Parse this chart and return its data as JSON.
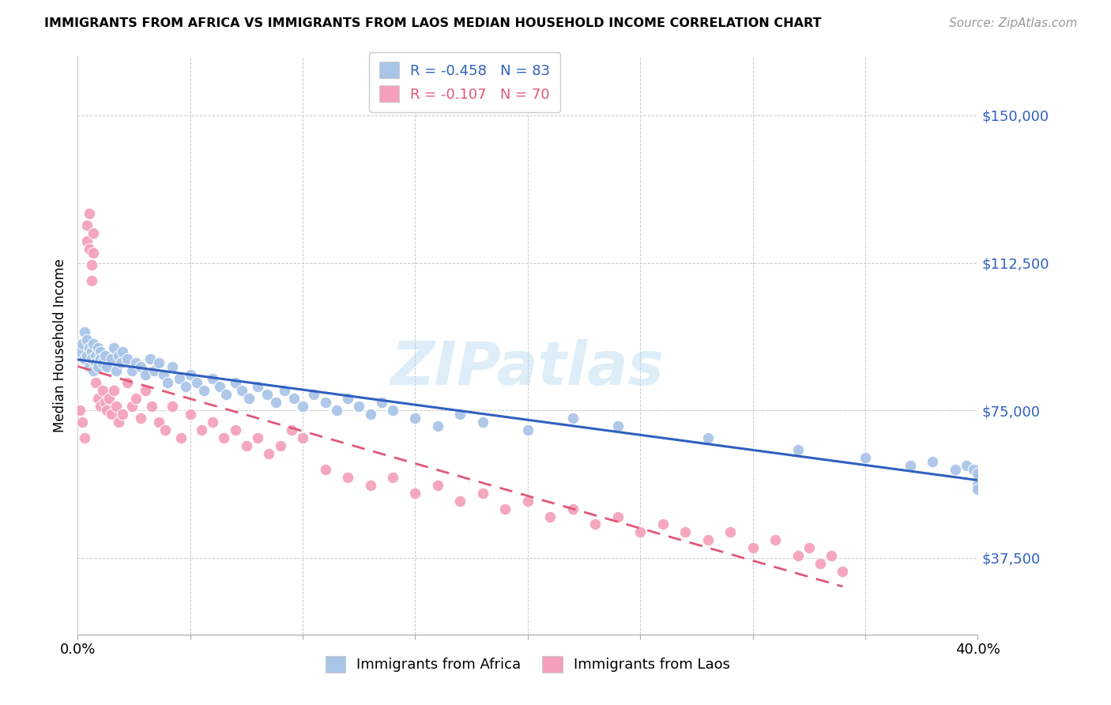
{
  "title": "IMMIGRANTS FROM AFRICA VS IMMIGRANTS FROM LAOS MEDIAN HOUSEHOLD INCOME CORRELATION CHART",
  "source": "Source: ZipAtlas.com",
  "ylabel": "Median Household Income",
  "africa_color": "#a8c4e8",
  "laos_color": "#f4a0b8",
  "africa_line_color": "#3060c0",
  "laos_line_color": "#e05878",
  "africa_R": -0.458,
  "africa_N": 83,
  "laos_R": -0.107,
  "laos_N": 70,
  "watermark": "ZIPatlas",
  "xlim": [
    0.0,
    0.4
  ],
  "ylim": [
    18000,
    165000
  ],
  "yticks": [
    37500,
    75000,
    112500,
    150000
  ],
  "ytick_labels": [
    "$37,500",
    "$75,000",
    "$112,500",
    "$150,000"
  ],
  "africa_scatter_x": [
    0.001,
    0.002,
    0.003,
    0.003,
    0.004,
    0.004,
    0.005,
    0.005,
    0.006,
    0.006,
    0.007,
    0.007,
    0.008,
    0.008,
    0.009,
    0.009,
    0.01,
    0.01,
    0.011,
    0.012,
    0.013,
    0.015,
    0.016,
    0.017,
    0.018,
    0.019,
    0.02,
    0.022,
    0.024,
    0.026,
    0.028,
    0.03,
    0.032,
    0.034,
    0.036,
    0.038,
    0.04,
    0.042,
    0.045,
    0.048,
    0.05,
    0.053,
    0.056,
    0.06,
    0.063,
    0.066,
    0.07,
    0.073,
    0.076,
    0.08,
    0.084,
    0.088,
    0.092,
    0.096,
    0.1,
    0.105,
    0.11,
    0.115,
    0.12,
    0.125,
    0.13,
    0.135,
    0.14,
    0.15,
    0.16,
    0.17,
    0.18,
    0.2,
    0.22,
    0.24,
    0.28,
    0.32,
    0.35,
    0.37,
    0.38,
    0.39,
    0.395,
    0.398,
    0.4,
    0.4,
    0.4,
    0.4,
    0.4
  ],
  "africa_scatter_y": [
    90000,
    92000,
    88000,
    95000,
    89000,
    93000,
    91000,
    86000,
    90000,
    88000,
    92000,
    85000,
    89000,
    87000,
    91000,
    86000,
    90000,
    88000,
    87000,
    89000,
    86000,
    88000,
    91000,
    85000,
    89000,
    87000,
    90000,
    88000,
    85000,
    87000,
    86000,
    84000,
    88000,
    85000,
    87000,
    84000,
    82000,
    86000,
    83000,
    81000,
    84000,
    82000,
    80000,
    83000,
    81000,
    79000,
    82000,
    80000,
    78000,
    81000,
    79000,
    77000,
    80000,
    78000,
    76000,
    79000,
    77000,
    75000,
    78000,
    76000,
    74000,
    77000,
    75000,
    73000,
    71000,
    74000,
    72000,
    70000,
    73000,
    71000,
    68000,
    65000,
    63000,
    61000,
    62000,
    60000,
    61000,
    60000,
    58000,
    57000,
    56000,
    55000,
    59000
  ],
  "laos_scatter_x": [
    0.001,
    0.002,
    0.003,
    0.004,
    0.004,
    0.005,
    0.005,
    0.006,
    0.006,
    0.007,
    0.007,
    0.008,
    0.009,
    0.01,
    0.011,
    0.012,
    0.013,
    0.014,
    0.015,
    0.016,
    0.017,
    0.018,
    0.02,
    0.022,
    0.024,
    0.026,
    0.028,
    0.03,
    0.033,
    0.036,
    0.039,
    0.042,
    0.046,
    0.05,
    0.055,
    0.06,
    0.065,
    0.07,
    0.075,
    0.08,
    0.085,
    0.09,
    0.095,
    0.1,
    0.11,
    0.12,
    0.13,
    0.14,
    0.15,
    0.16,
    0.17,
    0.18,
    0.19,
    0.2,
    0.21,
    0.22,
    0.23,
    0.24,
    0.25,
    0.26,
    0.27,
    0.28,
    0.29,
    0.3,
    0.31,
    0.32,
    0.325,
    0.33,
    0.335,
    0.34
  ],
  "laos_scatter_y": [
    75000,
    72000,
    68000,
    118000,
    122000,
    116000,
    125000,
    112000,
    108000,
    120000,
    115000,
    82000,
    78000,
    76000,
    80000,
    77000,
    75000,
    78000,
    74000,
    80000,
    76000,
    72000,
    74000,
    82000,
    76000,
    78000,
    73000,
    80000,
    76000,
    72000,
    70000,
    76000,
    68000,
    74000,
    70000,
    72000,
    68000,
    70000,
    66000,
    68000,
    64000,
    66000,
    70000,
    68000,
    60000,
    58000,
    56000,
    58000,
    54000,
    56000,
    52000,
    54000,
    50000,
    52000,
    48000,
    50000,
    46000,
    48000,
    44000,
    46000,
    44000,
    42000,
    44000,
    40000,
    42000,
    38000,
    40000,
    36000,
    38000,
    34000
  ]
}
